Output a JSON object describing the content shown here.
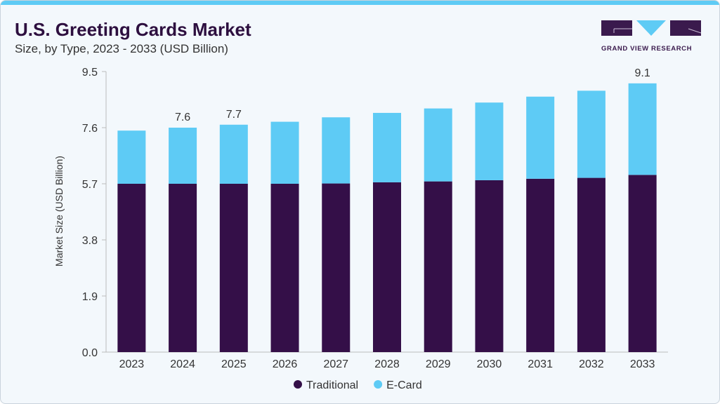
{
  "header": {
    "title": "U.S. Greeting Cards Market",
    "subtitle": "Size, by Type, 2023 - 2033 (USD Billion)"
  },
  "logo": {
    "text": "GRAND VIEW RESEARCH"
  },
  "colors": {
    "traditional": "#340f48",
    "ecard": "#5ecbf5",
    "accent": "#5ecbf5"
  },
  "chart_data": {
    "type": "bar",
    "stacked": true,
    "categories": [
      "2023",
      "2024",
      "2025",
      "2026",
      "2027",
      "2028",
      "2029",
      "2030",
      "2031",
      "2032",
      "2033"
    ],
    "series": [
      {
        "name": "Traditional",
        "values": [
          5.7,
          5.7,
          5.7,
          5.7,
          5.71,
          5.75,
          5.78,
          5.82,
          5.87,
          5.9,
          6.0
        ]
      },
      {
        "name": "E-Card",
        "values": [
          1.8,
          1.9,
          2.0,
          2.1,
          2.24,
          2.35,
          2.47,
          2.63,
          2.78,
          2.95,
          3.1
        ]
      }
    ],
    "totals": [
      7.5,
      7.6,
      7.7,
      7.8,
      7.95,
      8.1,
      8.25,
      8.45,
      8.65,
      8.85,
      9.1
    ],
    "data_labels": [
      {
        "category": "2024",
        "text": "7.6"
      },
      {
        "category": "2025",
        "text": "7.7"
      },
      {
        "category": "2033",
        "text": "9.1"
      }
    ],
    "ylabel": "Market Size (USD Billion)",
    "xlabel": "",
    "yticks": [
      "0.0",
      "1.9",
      "3.8",
      "5.7",
      "7.6",
      "9.5"
    ],
    "ylim": [
      0,
      9.5
    ],
    "grid": false,
    "legend": "bottom-center"
  }
}
